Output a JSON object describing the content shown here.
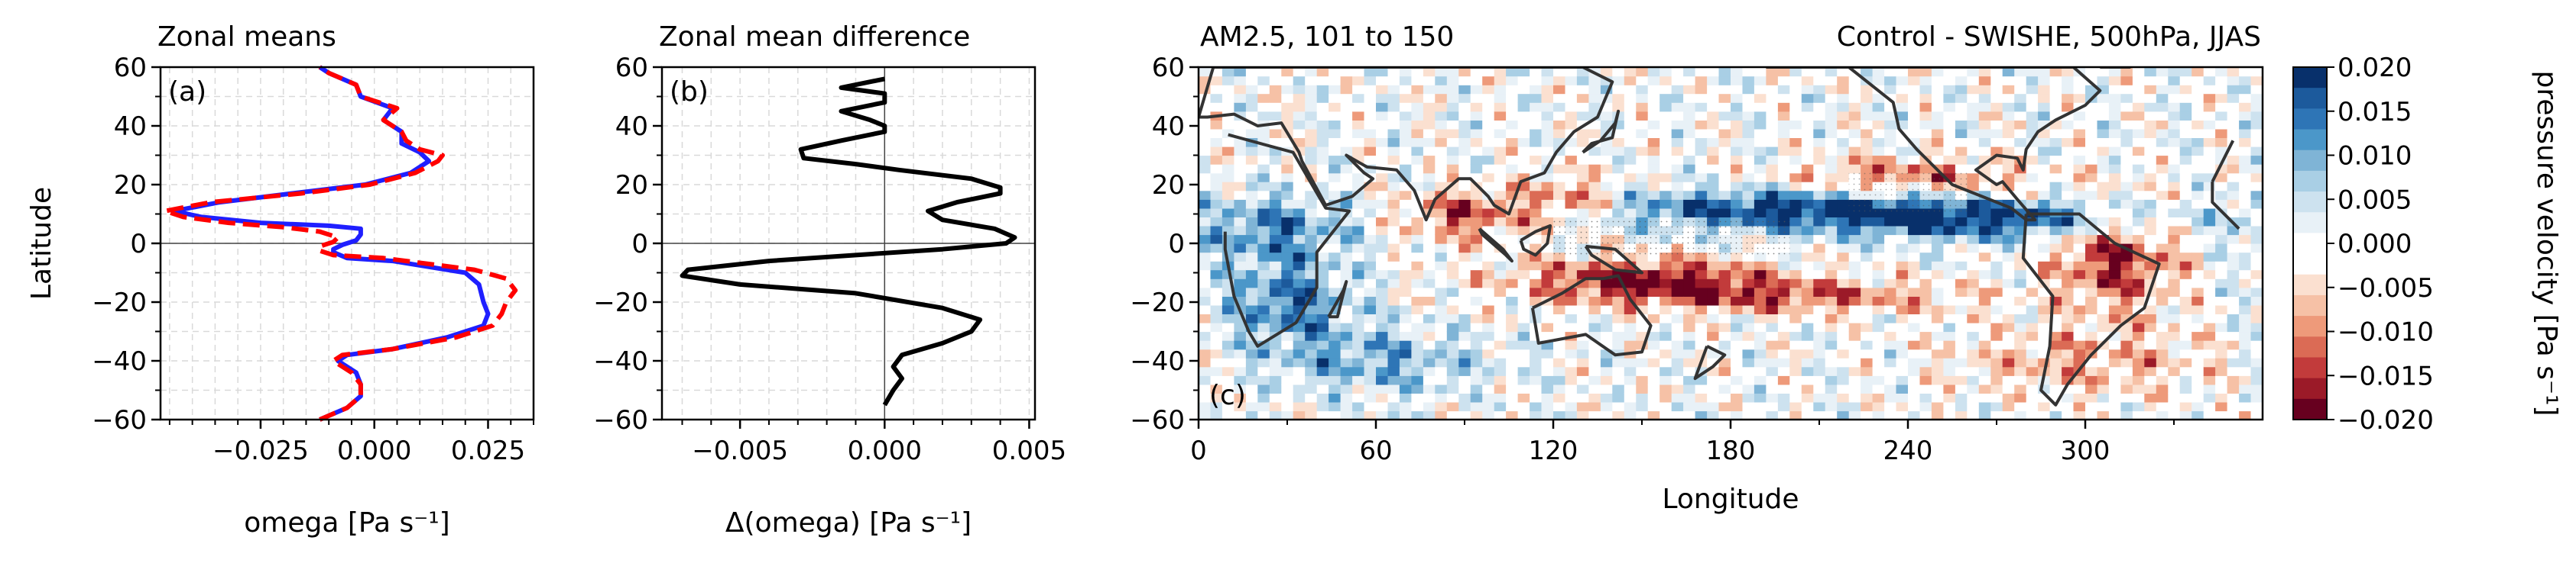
{
  "chart_data": [
    {
      "type": "line",
      "panel_label": "(a)",
      "title": "Zonal means",
      "xlabel": "omega [Pa s⁻¹]",
      "ylabel": "Latitude",
      "xlim": [
        -0.047,
        0.035
      ],
      "ylim": [
        -60,
        60
      ],
      "xticks": [
        -0.025,
        0.0,
        0.025
      ],
      "xtick_labels": [
        "−0.025",
        "0.000",
        "0.025"
      ],
      "yticks": [
        -60,
        -40,
        -20,
        0,
        20,
        40,
        60
      ],
      "ytick_labels": [
        "−60",
        "−40",
        "−20",
        "0",
        "20",
        "40",
        "60"
      ],
      "grid": true,
      "series": [
        {
          "color": "#1f1fff",
          "dash": "solid",
          "points": [
            [
              -0.012,
              -60
            ],
            [
              -0.006,
              -56
            ],
            [
              -0.003,
              -52
            ],
            [
              -0.003,
              -48
            ],
            [
              -0.004,
              -44
            ],
            [
              -0.008,
              -40
            ],
            [
              -0.006,
              -38
            ],
            [
              0.004,
              -36
            ],
            [
              0.016,
              -32
            ],
            [
              0.024,
              -28
            ],
            [
              0.025,
              -24
            ],
            [
              0.024,
              -20
            ],
            [
              0.023,
              -14
            ],
            [
              0.02,
              -10
            ],
            [
              0.012,
              -8
            ],
            [
              0.004,
              -6
            ],
            [
              -0.006,
              -5
            ],
            [
              -0.009,
              -3
            ],
            [
              -0.009,
              -2
            ],
            [
              -0.007,
              -0.5
            ],
            [
              -0.004,
              1
            ],
            [
              -0.003,
              3
            ],
            [
              -0.003,
              5
            ],
            [
              -0.01,
              6
            ],
            [
              -0.025,
              7
            ],
            [
              -0.038,
              9
            ],
            [
              -0.044,
              11
            ],
            [
              -0.034,
              14
            ],
            [
              -0.018,
              17
            ],
            [
              -0.002,
              20
            ],
            [
              0.008,
              24
            ],
            [
              0.012,
              28
            ],
            [
              0.01,
              31
            ],
            [
              0.006,
              34
            ],
            [
              0.006,
              38
            ],
            [
              0.002,
              42
            ],
            [
              0.004,
              46
            ],
            [
              -0.003,
              50
            ],
            [
              -0.004,
              54
            ],
            [
              -0.01,
              58
            ],
            [
              -0.012,
              60
            ]
          ]
        },
        {
          "color": "#ff0000",
          "dash": "dashed",
          "points": [
            [
              -0.012,
              -60
            ],
            [
              -0.006,
              -56
            ],
            [
              -0.003,
              -52
            ],
            [
              -0.003,
              -48
            ],
            [
              -0.005,
              -44
            ],
            [
              -0.009,
              -40
            ],
            [
              -0.007,
              -38
            ],
            [
              0.004,
              -36
            ],
            [
              0.018,
              -32
            ],
            [
              0.026,
              -28
            ],
            [
              0.028,
              -24
            ],
            [
              0.029,
              -20
            ],
            [
              0.031,
              -16
            ],
            [
              0.029,
              -12
            ],
            [
              0.022,
              -9
            ],
            [
              0.012,
              -7
            ],
            [
              0.002,
              -5
            ],
            [
              -0.009,
              -4
            ],
            [
              -0.012,
              -2.5
            ],
            [
              -0.012,
              -1
            ],
            [
              -0.009,
              0.5
            ],
            [
              -0.008,
              2
            ],
            [
              -0.012,
              4
            ],
            [
              -0.02,
              5.5
            ],
            [
              -0.032,
              7
            ],
            [
              -0.042,
              9
            ],
            [
              -0.046,
              11
            ],
            [
              -0.036,
              14
            ],
            [
              -0.016,
              17
            ],
            [
              -0.001,
              20
            ],
            [
              0.009,
              24
            ],
            [
              0.014,
              28
            ],
            [
              0.015,
              30
            ],
            [
              0.01,
              32
            ],
            [
              0.007,
              35
            ],
            [
              0.006,
              38
            ],
            [
              0.002,
              42
            ],
            [
              0.005,
              46
            ],
            [
              -0.003,
              50
            ],
            [
              -0.004,
              54
            ],
            [
              -0.01,
              58
            ],
            [
              -0.012,
              60
            ]
          ]
        }
      ]
    },
    {
      "type": "line",
      "panel_label": "(b)",
      "title": "Zonal mean difference",
      "xlabel": "Δ(omega) [Pa s⁻¹]",
      "ylabel": "",
      "xlim": [
        -0.0077,
        0.0052
      ],
      "ylim": [
        -60,
        60
      ],
      "xticks": [
        -0.005,
        0.0,
        0.005
      ],
      "xtick_labels": [
        "−0.005",
        "0.000",
        "0.005"
      ],
      "yticks": [
        -60,
        -40,
        -20,
        0,
        20,
        40,
        60
      ],
      "ytick_labels": [
        "−60",
        "−40",
        "−20",
        "0",
        "20",
        "40",
        "60"
      ],
      "grid": true,
      "series": [
        {
          "color": "#000000",
          "dash": "solid",
          "points": [
            [
              0.0,
              -55
            ],
            [
              0.0003,
              -50
            ],
            [
              0.0006,
              -46
            ],
            [
              0.0003,
              -42
            ],
            [
              0.0006,
              -38
            ],
            [
              0.002,
              -34
            ],
            [
              0.003,
              -30
            ],
            [
              0.0033,
              -26
            ],
            [
              0.002,
              -22
            ],
            [
              -0.001,
              -17
            ],
            [
              -0.005,
              -14
            ],
            [
              -0.007,
              -11
            ],
            [
              -0.0068,
              -9
            ],
            [
              -0.004,
              -6
            ],
            [
              -0.001,
              -4
            ],
            [
              0.002,
              -2
            ],
            [
              0.0042,
              0
            ],
            [
              0.0045,
              2
            ],
            [
              0.0038,
              5
            ],
            [
              0.002,
              8
            ],
            [
              0.0015,
              11
            ],
            [
              0.0025,
              14
            ],
            [
              0.004,
              17
            ],
            [
              0.004,
              19
            ],
            [
              0.003,
              22
            ],
            [
              0.0005,
              25
            ],
            [
              -0.001,
              27
            ],
            [
              -0.0028,
              29
            ],
            [
              -0.0029,
              32
            ],
            [
              -0.0015,
              35
            ],
            [
              0.0,
              38
            ],
            [
              0.0,
              40
            ],
            [
              -0.0005,
              42
            ],
            [
              -0.0015,
              45
            ],
            [
              0.0,
              48
            ],
            [
              0.0,
              51
            ],
            [
              -0.0015,
              53
            ],
            [
              0.0,
              56
            ]
          ]
        }
      ]
    },
    {
      "type": "heatmap",
      "panel_label": "(c)",
      "title": "AM2.5, 101 to 150",
      "subtitle": "Control - SWISHE, 500hPa, JJAS",
      "xlabel": "Longitude",
      "ylabel": "",
      "xlim": [
        0,
        360
      ],
      "ylim": [
        -60,
        60
      ],
      "xticks": [
        0,
        60,
        120,
        180,
        240,
        300
      ],
      "xtick_labels": [
        "0",
        "60",
        "120",
        "180",
        "240",
        "300"
      ],
      "yticks": [
        -60,
        -40,
        -20,
        0,
        20,
        40,
        60
      ],
      "ytick_labels": [
        "−60",
        "−40",
        "−20",
        "0",
        "20",
        "40",
        "60"
      ],
      "colorbar": {
        "label": "pressure velocity [Pa s⁻¹]",
        "range": [
          -0.02,
          0.02
        ],
        "ticks": [
          0.02,
          0.015,
          0.01,
          0.005,
          0.0,
          -0.005,
          -0.01,
          -0.015,
          -0.02
        ],
        "tick_labels": [
          "0.020",
          "0.015",
          "0.010",
          "0.005",
          "0.000",
          "−0.005",
          "−0.010",
          "−0.015",
          "−0.020"
        ],
        "levels_top_to_bottom": [
          "#08306b",
          "#1c5a9c",
          "#2e75b6",
          "#4b97c9",
          "#7fb4d6",
          "#a9cfe5",
          "#cde2ef",
          "#e8f1f7",
          "#ffffff",
          "#ffffff",
          "#fbe0d0",
          "#f6c1a6",
          "#ee9a7a",
          "#db6b55",
          "#c23b3b",
          "#9b1a28",
          "#67001f"
        ]
      }
    }
  ]
}
